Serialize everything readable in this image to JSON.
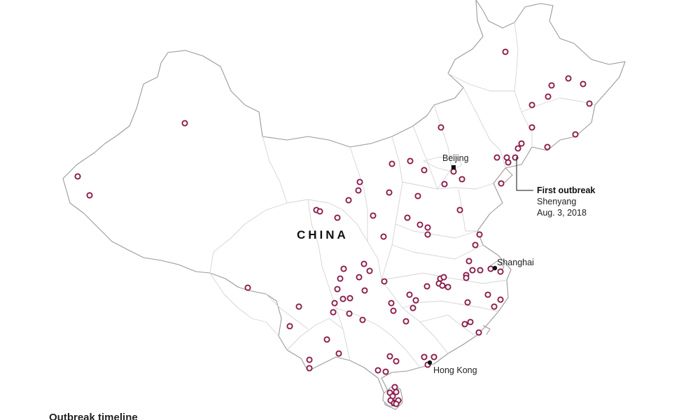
{
  "map": {
    "country_label": "CHINA",
    "cities": [
      {
        "id": "beijing",
        "name": "Beijing"
      },
      {
        "id": "shanghai",
        "name": "Shanghai"
      },
      {
        "id": "hong-kong",
        "name": "Hong Kong"
      }
    ],
    "annotation": {
      "title": "First outbreak",
      "place": "Shenyang",
      "date": "Aug. 3, 2018"
    },
    "marker_color": "#8a1b4a",
    "outbreak_count": 107
  },
  "footer": {
    "text": "Outbreak timeline"
  }
}
